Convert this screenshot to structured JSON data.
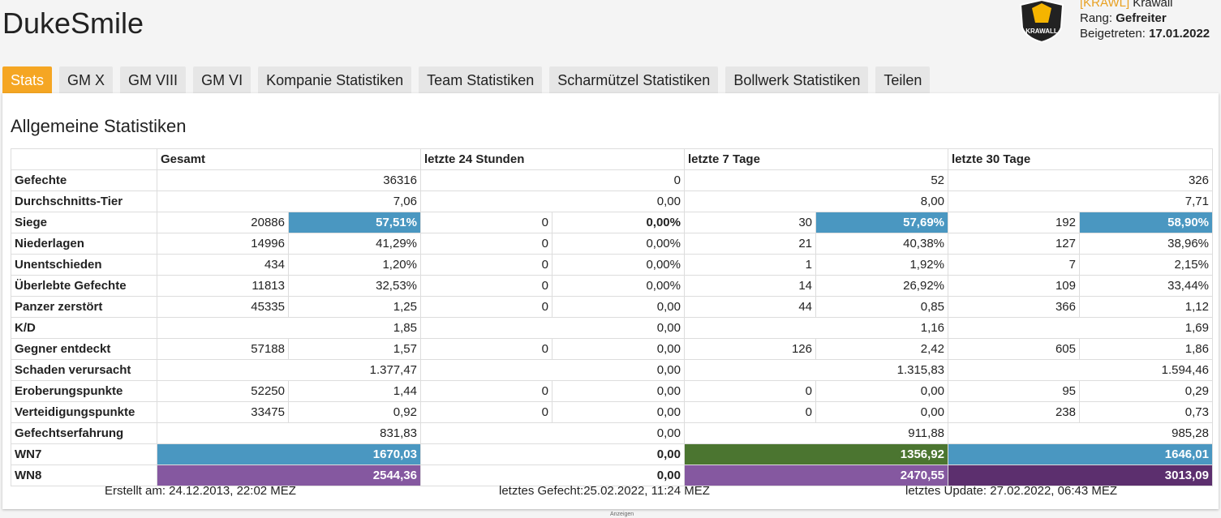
{
  "header": {
    "title": "DukeSmile",
    "logo_text": "KRAWALL",
    "clan_tag": "[KRAWL]",
    "clan_name": "Krawall",
    "rank_label": "Rang:",
    "rank": "Gefreiter",
    "joined_label": "Beigetreten:",
    "joined": "17.01.2022"
  },
  "tabs": [
    "Stats",
    "GM X",
    "GM VIII",
    "GM VI",
    "Kompanie Statistiken",
    "Team Statistiken",
    "Scharmützel Statistiken",
    "Bollwerk Statistiken",
    "Teilen"
  ],
  "active_tab": 0,
  "section_title": "Allgemeine Statistiken",
  "table": {
    "columns": [
      "Gesamt",
      "letzte 24 Stunden",
      "letzte 7 Tage",
      "letzte 30 Tage"
    ],
    "rows": [
      {
        "label": "Gefechte",
        "cells": [
          [
            "36316"
          ],
          [
            "0"
          ],
          [
            "52"
          ],
          [
            "326"
          ]
        ]
      },
      {
        "label": "Durchschnitts-Tier",
        "cells": [
          [
            "7,06"
          ],
          [
            "0,00"
          ],
          [
            "8,00"
          ],
          [
            "7,71"
          ]
        ]
      },
      {
        "label": "Siege",
        "cells": [
          [
            "20886",
            "57,51%"
          ],
          [
            "0",
            "0,00%"
          ],
          [
            "30",
            "57,69%"
          ],
          [
            "192",
            "58,90%"
          ]
        ],
        "colors": [
          "#4a97c1",
          null,
          "#4a97c1",
          "#4a97c1"
        ],
        "bold": true
      },
      {
        "label": "Niederlagen",
        "cells": [
          [
            "14996",
            "41,29%"
          ],
          [
            "0",
            "0,00%"
          ],
          [
            "21",
            "40,38%"
          ],
          [
            "127",
            "38,96%"
          ]
        ]
      },
      {
        "label": "Unentschieden",
        "cells": [
          [
            "434",
            "1,20%"
          ],
          [
            "0",
            "0,00%"
          ],
          [
            "1",
            "1,92%"
          ],
          [
            "7",
            "2,15%"
          ]
        ]
      },
      {
        "label": "Überlebte Gefechte",
        "cells": [
          [
            "11813",
            "32,53%"
          ],
          [
            "0",
            "0,00%"
          ],
          [
            "14",
            "26,92%"
          ],
          [
            "109",
            "33,44%"
          ]
        ]
      },
      {
        "label": "Panzer zerstört",
        "cells": [
          [
            "45335",
            "1,25"
          ],
          [
            "0",
            "0,00"
          ],
          [
            "44",
            "0,85"
          ],
          [
            "366",
            "1,12"
          ]
        ]
      },
      {
        "label": "K/D",
        "cells": [
          [
            "1,85"
          ],
          [
            "0,00"
          ],
          [
            "1,16"
          ],
          [
            "1,69"
          ]
        ]
      },
      {
        "label": "Gegner entdeckt",
        "cells": [
          [
            "57188",
            "1,57"
          ],
          [
            "0",
            "0,00"
          ],
          [
            "126",
            "2,42"
          ],
          [
            "605",
            "1,86"
          ]
        ]
      },
      {
        "label": "Schaden verursacht",
        "cells": [
          [
            "1.377,47"
          ],
          [
            "0,00"
          ],
          [
            "1.315,83"
          ],
          [
            "1.594,46"
          ]
        ]
      },
      {
        "label": "Eroberungspunkte",
        "cells": [
          [
            "52250",
            "1,44"
          ],
          [
            "0",
            "0,00"
          ],
          [
            "0",
            "0,00"
          ],
          [
            "95",
            "0,29"
          ]
        ]
      },
      {
        "label": "Verteidigungspunkte",
        "cells": [
          [
            "33475",
            "0,92"
          ],
          [
            "0",
            "0,00"
          ],
          [
            "0",
            "0,00"
          ],
          [
            "238",
            "0,73"
          ]
        ]
      },
      {
        "label": "Gefechtserfahrung",
        "cells": [
          [
            "831,83"
          ],
          [
            "0,00"
          ],
          [
            "911,88"
          ],
          [
            "985,28"
          ]
        ]
      },
      {
        "label": "WN7",
        "cells": [
          [
            "1670,03"
          ],
          [
            "0,00"
          ],
          [
            "1356,92"
          ],
          [
            "1646,01"
          ]
        ],
        "colors": [
          "#4a97c1",
          null,
          "#4b7530",
          "#4a97c1"
        ],
        "bold": true
      },
      {
        "label": "WN8",
        "cells": [
          [
            "2544,36"
          ],
          [
            "0,00"
          ],
          [
            "2470,55"
          ],
          [
            "3013,09"
          ]
        ],
        "colors": [
          "#8558a0",
          null,
          "#8558a0",
          "#5c2f6e"
        ],
        "bold": true
      }
    ]
  },
  "footer": [
    "Erstellt am: 24.12.2013, 22:02 MEZ",
    "letztes Gefecht:25.02.2022, 11:24 MEZ",
    "letztes Update: 27.02.2022, 06:43 MEZ"
  ],
  "ad_label": "Anzeigen"
}
